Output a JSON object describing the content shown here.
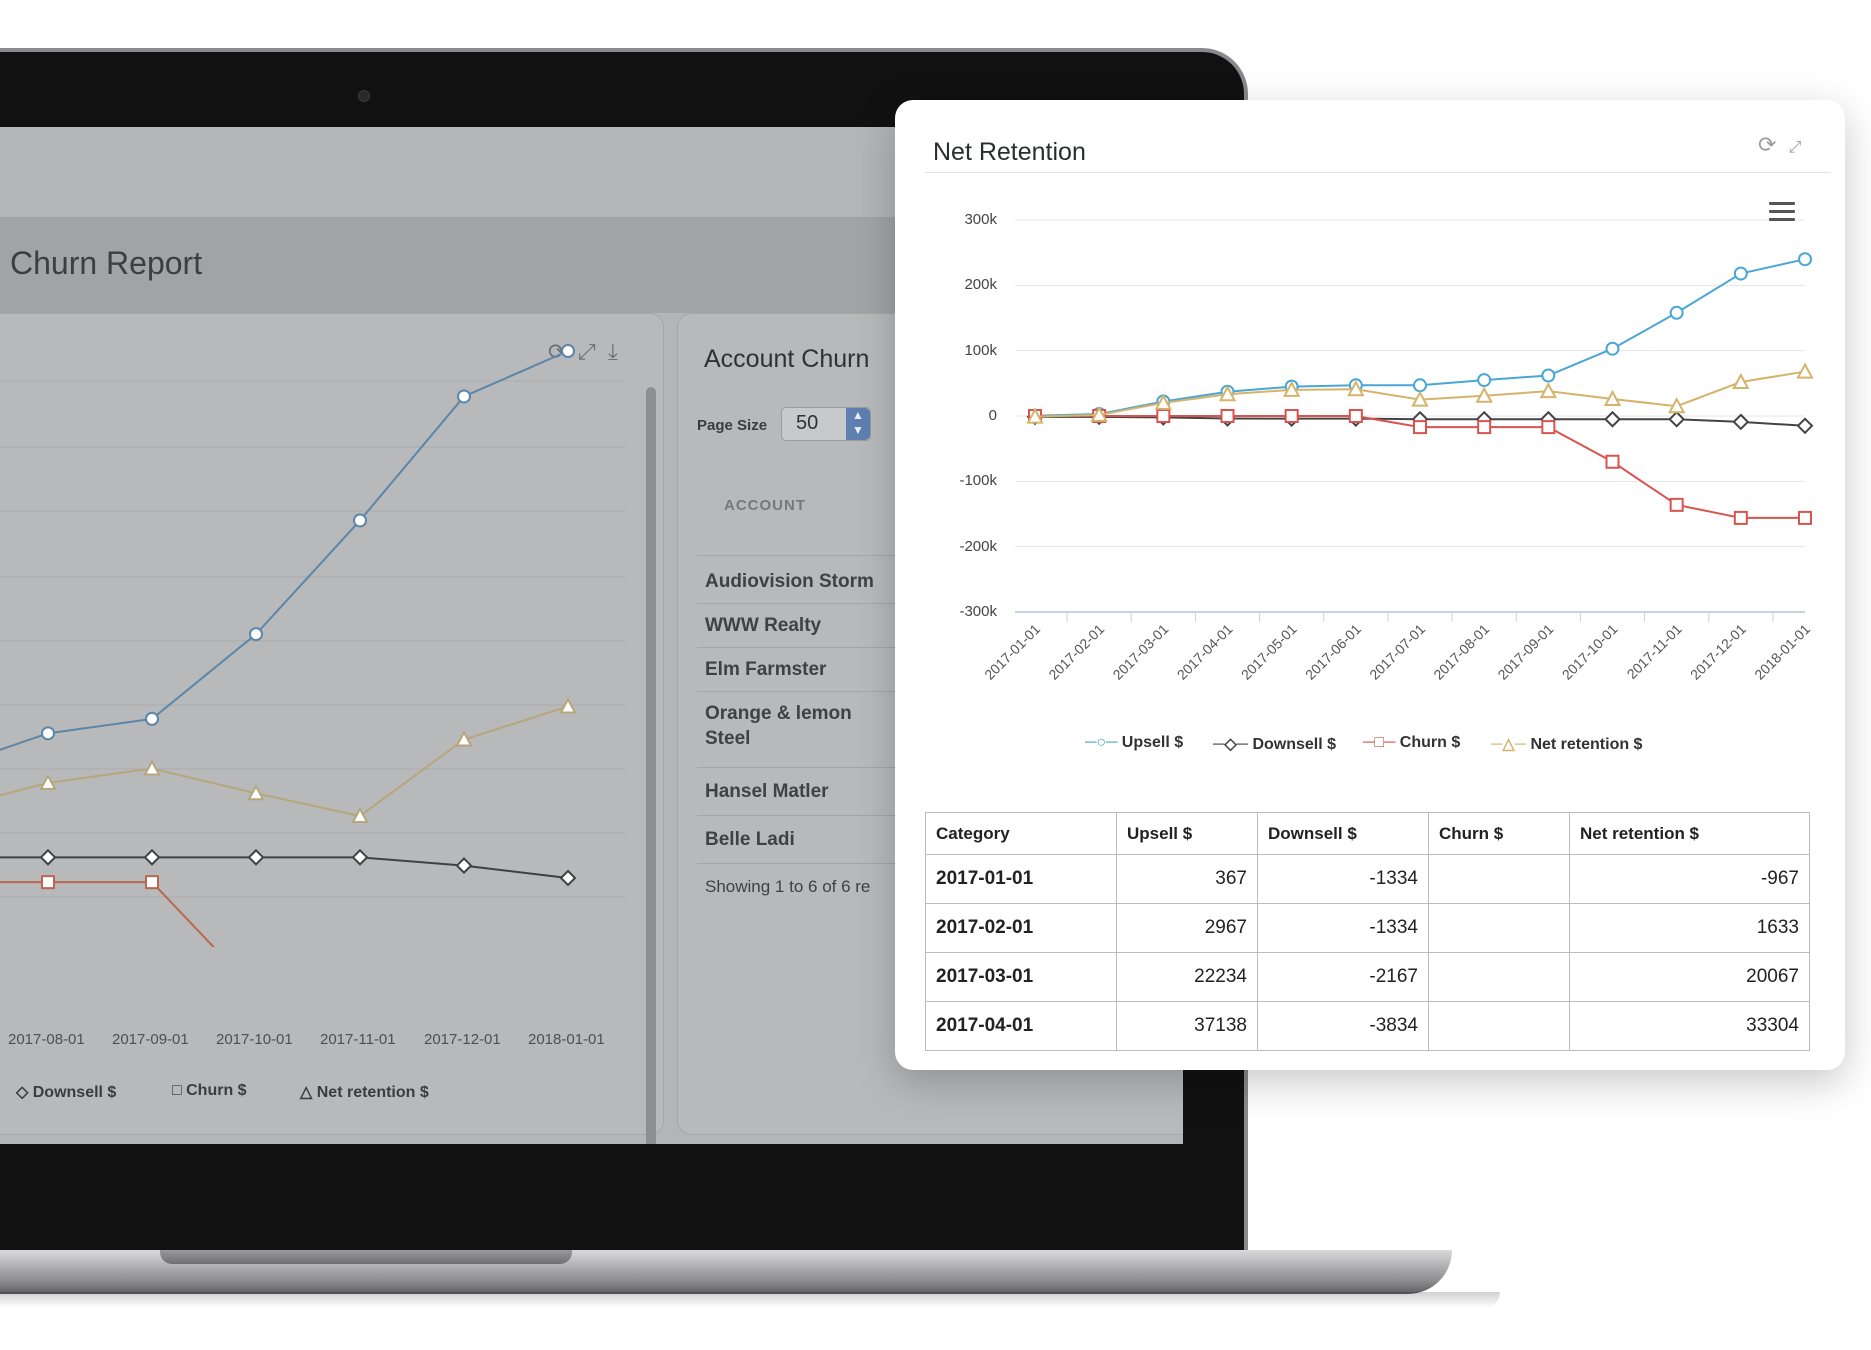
{
  "report": {
    "title": "Churn Report",
    "account_panel": {
      "title": "Account Churn",
      "page_size_label": "Page Size",
      "page_size_value": "50",
      "column_header": "ACCOUNT",
      "accounts": [
        "Audiovision Storm",
        "WWW Realty",
        "Elm Farmster",
        "Orange & lemon Steel",
        "Hansel Matler",
        "Belle Ladi"
      ],
      "showing_text": "Showing 1 to 6 of 6 re"
    },
    "background_chart": {
      "x_ticks": [
        "2017-08-01",
        "2017-09-01",
        "2017-10-01",
        "2017-11-01",
        "2017-12-01",
        "2018-01-01"
      ],
      "legend": [
        "Downsell $",
        "Churn $",
        "Net retention $"
      ]
    }
  },
  "card": {
    "title": "Net Retention",
    "tools": [
      "refresh-icon",
      "expand-icon"
    ],
    "menu_icon": "hamburger-menu-icon",
    "table": {
      "headers": [
        "Category",
        "Upsell $",
        "Downsell $",
        "Churn $",
        "Net retention $"
      ],
      "rows": [
        [
          "2017-01-01",
          "367",
          "-1334",
          "",
          "-967"
        ],
        [
          "2017-02-01",
          "2967",
          "-1334",
          "",
          "1633"
        ],
        [
          "2017-03-01",
          "22234",
          "-2167",
          "",
          "20067"
        ],
        [
          "2017-04-01",
          "37138",
          "-3834",
          "",
          "33304"
        ]
      ]
    }
  },
  "chart_data": {
    "type": "line",
    "title": "Net Retention",
    "x": [
      "2017-01-01",
      "2017-02-01",
      "2017-03-01",
      "2017-04-01",
      "2017-05-01",
      "2017-06-01",
      "2017-07-01",
      "2017-08-01",
      "2017-09-01",
      "2017-10-01",
      "2017-11-01",
      "2017-12-01",
      "2018-01-01"
    ],
    "y_ticks": [
      "300k",
      "200k",
      "100k",
      "0",
      "-100k",
      "-200k",
      "-300k"
    ],
    "ylim": [
      -300000,
      300000
    ],
    "grid": true,
    "legend_position": "bottom",
    "series": [
      {
        "name": "Upsell $",
        "color": "#4aa6d4",
        "marker": "circle",
        "values": [
          367,
          2967,
          22234,
          37138,
          45000,
          47000,
          47000,
          55000,
          62000,
          103000,
          158000,
          218000,
          240000
        ]
      },
      {
        "name": "Downsell $",
        "color": "#444444",
        "marker": "diamond",
        "values": [
          -1334,
          -1334,
          -2167,
          -3834,
          -4000,
          -4000,
          -5000,
          -5000,
          -5000,
          -5000,
          -5000,
          -9000,
          -15000
        ]
      },
      {
        "name": "Churn $",
        "color": "#d9534f",
        "marker": "square",
        "values": [
          0,
          0,
          0,
          0,
          0,
          0,
          -17000,
          -17000,
          -17000,
          -70000,
          -136000,
          -156000,
          -156000
        ]
      },
      {
        "name": "Net retention $",
        "color": "#d4b36a",
        "marker": "triangle",
        "values": [
          -967,
          1633,
          20067,
          33304,
          40000,
          41000,
          25000,
          31000,
          38000,
          26000,
          15000,
          52000,
          68000
        ]
      }
    ]
  }
}
